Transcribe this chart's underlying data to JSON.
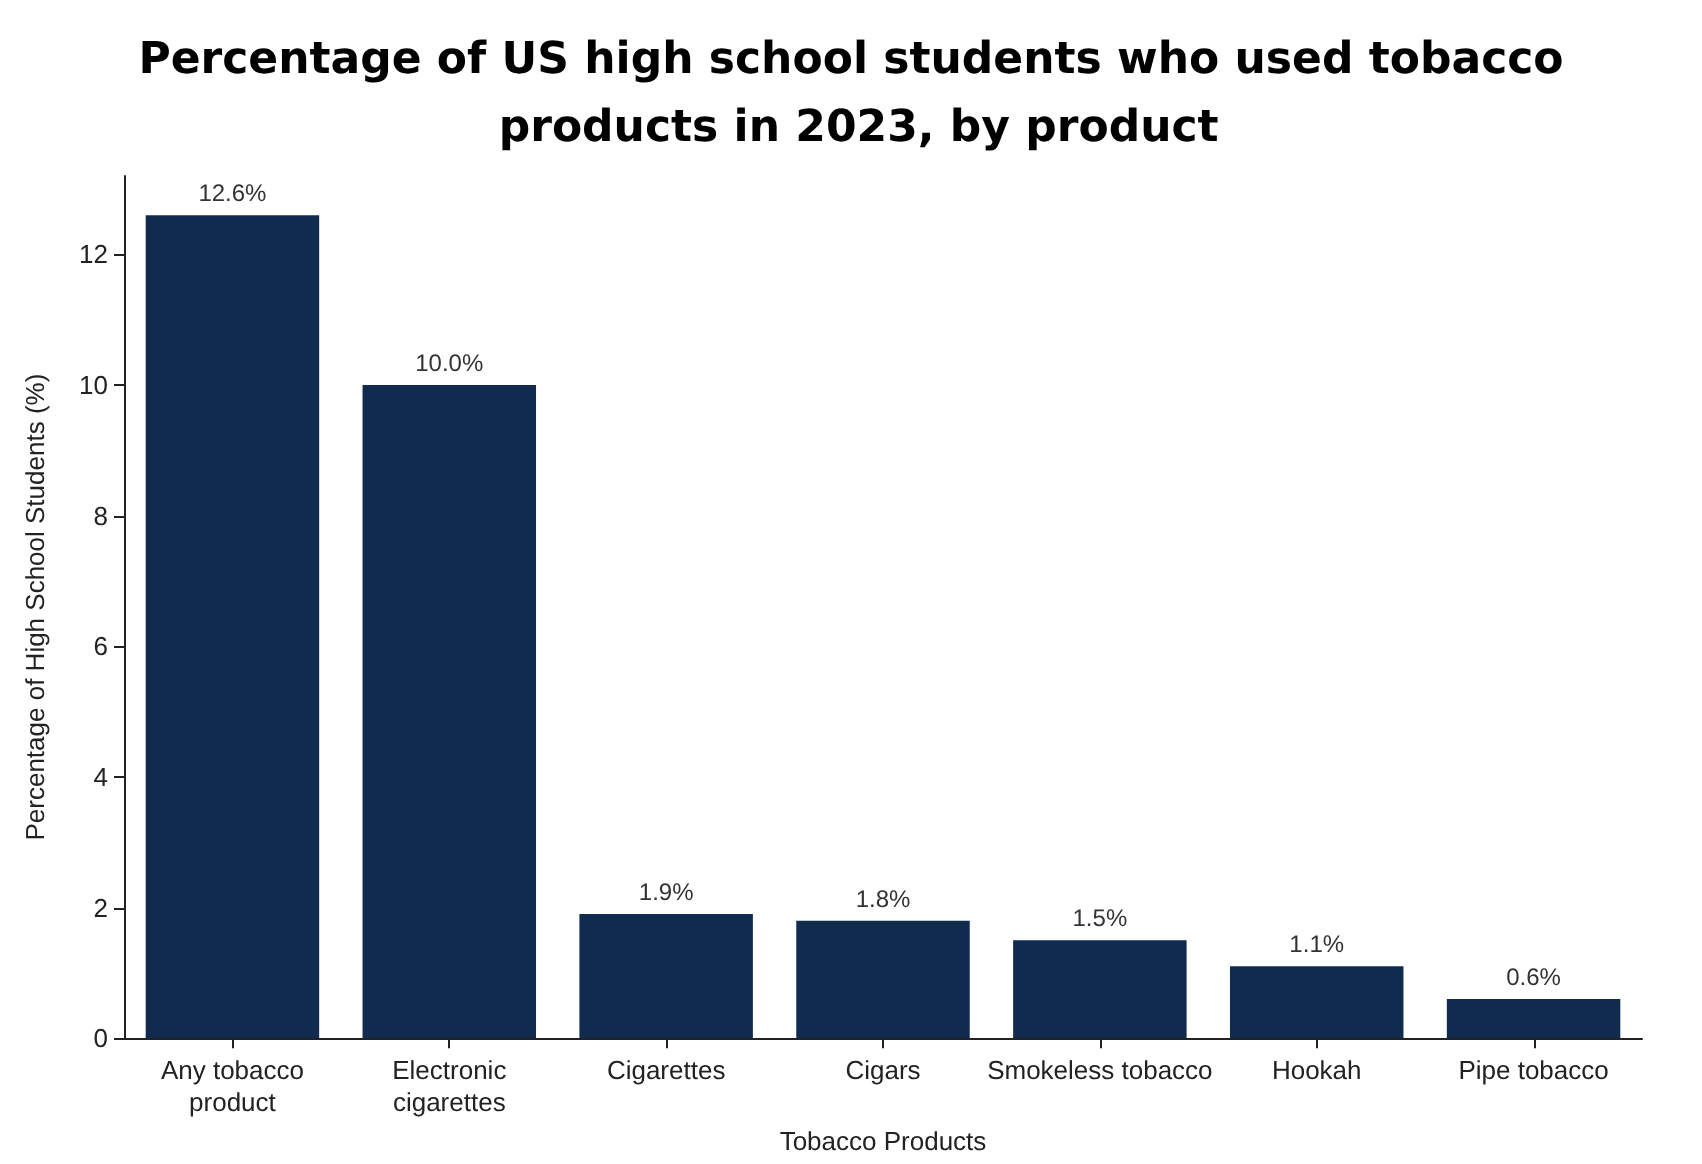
{
  "chart_data": {
    "type": "bar",
    "title": "Percentage of US high school students who used tobacco products in 2023, by product",
    "xlabel": "Tobacco Products",
    "ylabel": "Percentage of High School Students (%)",
    "categories": [
      "Any tobacco\nproduct",
      "Electronic\ncigarettes",
      "Cigarettes",
      "Cigars",
      "Smokeless tobacco",
      "Hookah",
      "Pipe tobacco"
    ],
    "values": [
      12.6,
      10.0,
      1.9,
      1.8,
      1.5,
      1.1,
      0.6
    ],
    "value_labels": [
      "12.6%",
      "10.0%",
      "1.9%",
      "1.8%",
      "1.5%",
      "1.1%",
      "0.6%"
    ],
    "color": "#112b4f",
    "ylim": [
      0,
      13.2
    ],
    "yticks": [
      0,
      2,
      4,
      6,
      8,
      10,
      12
    ],
    "grid": false
  }
}
